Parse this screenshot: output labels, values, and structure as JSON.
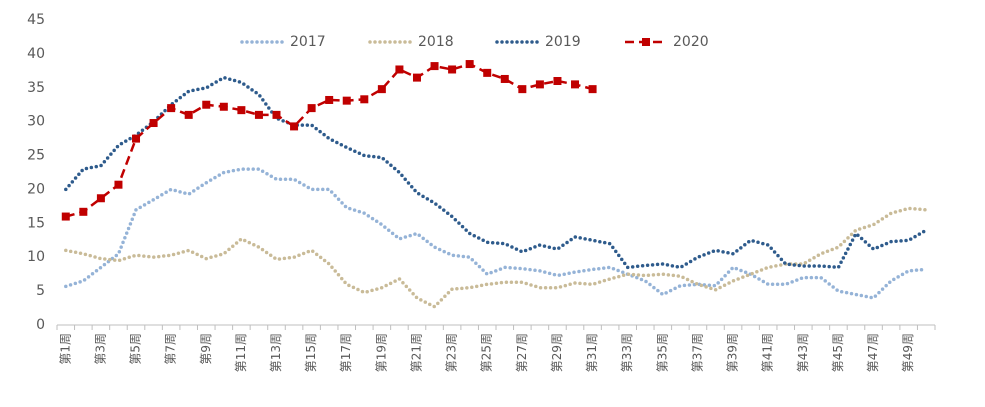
{
  "chart_data": {
    "type": "line",
    "categories": [
      "第1周",
      null,
      "第3周",
      null,
      "第5周",
      null,
      "第7周",
      null,
      "第9周",
      null,
      "第11周",
      null,
      "第13周",
      null,
      "第15周",
      null,
      "第17周",
      null,
      "第19周",
      null,
      "第21周",
      null,
      "第23周",
      null,
      "第25周",
      null,
      "第27周",
      null,
      "第29周",
      null,
      "第31周",
      null,
      "第33周",
      null,
      "第35周",
      null,
      "第37周",
      null,
      "第39周",
      null,
      "第41周",
      null,
      "第43周",
      null,
      "第45周",
      null,
      "第47周",
      null,
      "第49周",
      null
    ],
    "series": [
      {
        "name": "2017",
        "color": "#95b3d7",
        "style": "dotted",
        "values": [
          5.7,
          6.5,
          8.5,
          10.5,
          17,
          18.5,
          20,
          19.3,
          21,
          22.5,
          23,
          23,
          21.5,
          21.5,
          20,
          20,
          17.3,
          16.5,
          14.8,
          12.7,
          13.5,
          11.5,
          10.3,
          10,
          7.5,
          8.5,
          8.3,
          8,
          7.3,
          7.8,
          8.2,
          8.5,
          7.5,
          6.5,
          4.5,
          5.8,
          6,
          5.8,
          8.5,
          7.5,
          6,
          6,
          7,
          7,
          5,
          4.5,
          4,
          6.5,
          8,
          8.2
        ]
      },
      {
        "name": "2018",
        "color": "#c9bb98",
        "style": "dotted",
        "values": [
          11,
          10.5,
          9.8,
          9.5,
          10.3,
          10,
          10.3,
          11,
          9.8,
          10.5,
          12.7,
          11.5,
          9.7,
          10,
          11,
          9,
          6,
          4.8,
          5.5,
          6.8,
          4,
          2.7,
          5.3,
          5.5,
          6,
          6.3,
          6.3,
          5.5,
          5.5,
          6.2,
          6,
          6.8,
          7.5,
          7.3,
          7.5,
          7.2,
          6,
          5.2,
          6.5,
          7.5,
          8.5,
          9,
          9,
          10.5,
          11.5,
          14,
          14.8,
          16.5,
          17.2,
          17
        ]
      },
      {
        "name": "2019",
        "color": "#2e5b8c",
        "style": "dotted",
        "values": [
          20,
          23,
          23.5,
          26.5,
          28,
          30,
          32.5,
          34.5,
          35,
          36.5,
          35.8,
          34,
          30.5,
          29.5,
          29.5,
          27.5,
          26.2,
          25,
          24.7,
          22.5,
          19.5,
          18,
          16,
          13.5,
          12.2,
          12,
          10.8,
          11.8,
          11.2,
          13,
          12.5,
          12,
          8.5,
          8.8,
          9,
          8.5,
          10,
          11,
          10.5,
          12.5,
          11.8,
          9,
          8.7,
          8.7,
          8.5,
          13.5,
          11.2,
          12.3,
          12.5,
          14
        ]
      },
      {
        "name": "2020",
        "color": "#c00000",
        "style": "dashed",
        "marker": "square",
        "values": [
          16,
          16.7,
          18.7,
          20.7,
          27.5,
          29.8,
          32,
          31,
          32.5,
          32.2,
          31.7,
          31,
          31,
          29.3,
          32,
          33.2,
          33.1,
          33.3,
          34.8,
          37.7,
          36.5,
          38.2,
          37.7,
          38.5,
          37.2,
          36.3,
          34.8,
          35.5,
          36,
          35.5,
          34.8,
          null,
          null,
          null,
          null,
          null,
          null,
          null,
          null,
          null,
          null,
          null,
          null,
          null,
          null,
          null,
          null,
          null,
          null,
          null
        ]
      }
    ],
    "ylim": [
      0,
      45
    ],
    "yticks": [
      0,
      5,
      10,
      15,
      20,
      25,
      30,
      35,
      40,
      45
    ],
    "grid": false,
    "legend": "top"
  }
}
